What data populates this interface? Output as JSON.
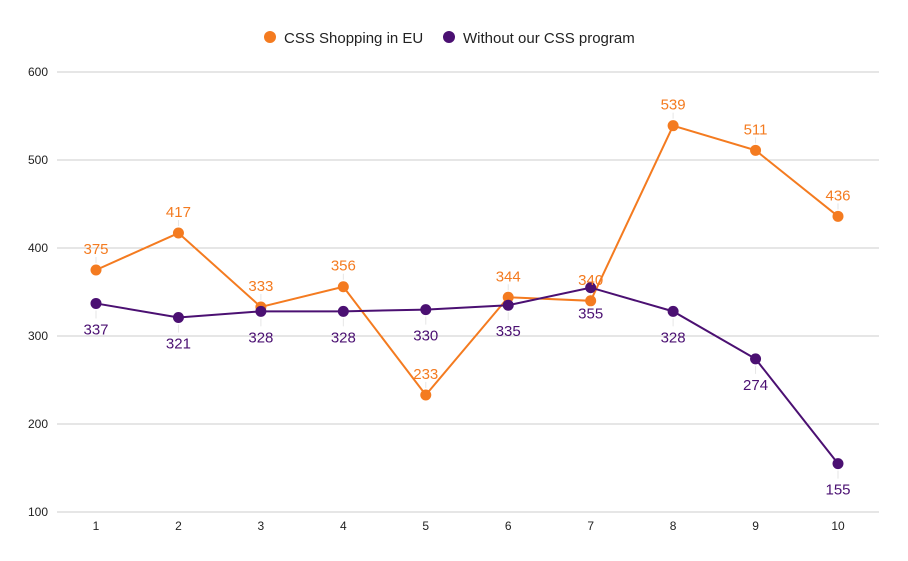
{
  "chart_data": {
    "type": "line",
    "title": "",
    "xlabel": "",
    "ylabel": "",
    "categories": [
      "1",
      "2",
      "3",
      "4",
      "5",
      "6",
      "7",
      "8",
      "9",
      "10"
    ],
    "ylim": [
      100,
      600
    ],
    "yticks": [
      100,
      200,
      300,
      400,
      500,
      600
    ],
    "ytick_labels": [
      "100",
      "200",
      "300",
      "400",
      "500",
      "600"
    ],
    "grid": true,
    "legend_position": "top-center",
    "series": [
      {
        "name": "CSS Shopping in EU",
        "color": "#f47b20",
        "values": [
          375,
          417,
          333,
          356,
          233,
          344,
          340,
          539,
          511,
          436
        ],
        "labels": [
          "375",
          "417",
          "333",
          "356",
          "233",
          "344",
          "340",
          "539",
          "511",
          "436"
        ],
        "label_position": "above"
      },
      {
        "name": "Without our CSS program",
        "color": "#4b1072",
        "values": [
          337,
          321,
          328,
          328,
          330,
          335,
          355,
          328,
          274,
          155
        ],
        "labels": [
          "337",
          "321",
          "328",
          "328",
          "330",
          "335",
          "355",
          "328",
          "274",
          "155"
        ],
        "label_position": "below"
      }
    ]
  }
}
